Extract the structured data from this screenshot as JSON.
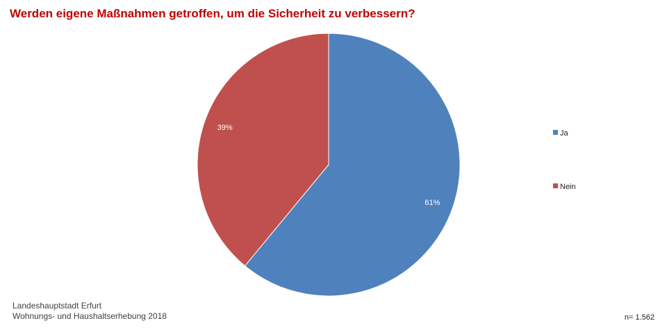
{
  "chart_data": {
    "type": "pie",
    "title": "Werden eigene Maßnahmen getroffen, um die Sicherheit zu verbessern?",
    "slices": [
      {
        "label": "Ja",
        "value": 61,
        "value_label": "61%",
        "color": "#4f81bd"
      },
      {
        "label": "Nein",
        "value": 39,
        "value_label": "39%",
        "color": "#c0504d"
      }
    ],
    "legend": {
      "placement": "right"
    }
  },
  "footer": {
    "source_line1": "Landeshauptstadt Erfurt",
    "source_line2": "Wohnungs- und Haushaltserhebung 2018",
    "sample_size": "n= 1.562"
  }
}
